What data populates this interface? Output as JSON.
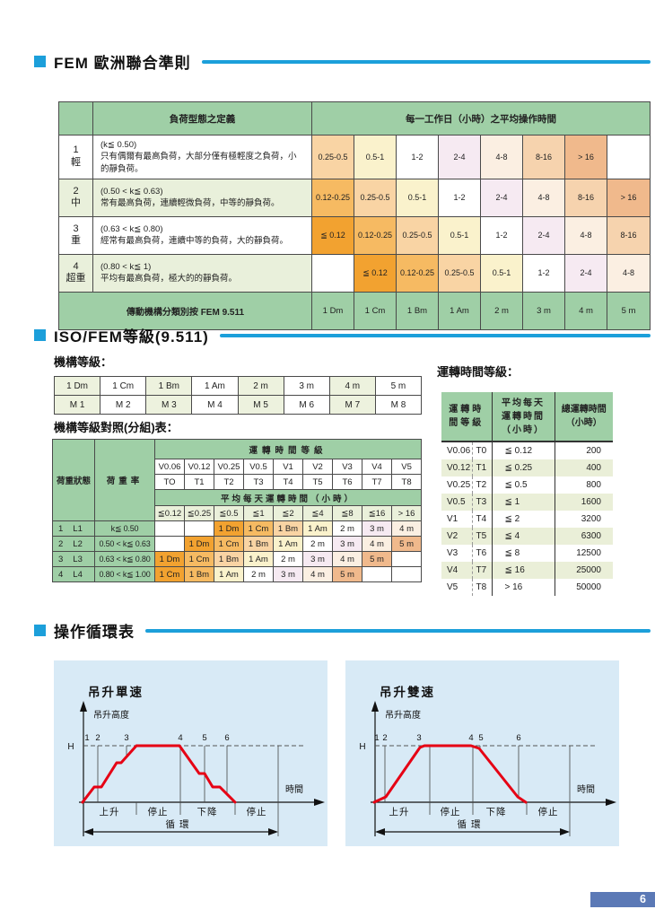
{
  "accent": {
    "blue": "#1C9FDA",
    "red": "#E60014",
    "panel_blue": "#D8EAF6",
    "badge_blue": "#5B79B6",
    "table_green": "#9FCFA6"
  },
  "page_number": "6",
  "fem": {
    "title": "FEM 歐洲聯合準則",
    "table": {
      "col_def": "負荷型態之定義",
      "col_time": "每一工作日（小時）之平均操作時間",
      "rows": [
        {
          "no": "1",
          "cls": "輕",
          "cond": "(k≦ 0.50)",
          "desc": "只有偶爾有最高負荷，大部分僅有極輕度之負荷，小的靜負荷。",
          "shade": false,
          "cells": [
            {
              "t": "0.25-0.5",
              "c": "o3"
            },
            {
              "t": "0.5-1",
              "c": "cr"
            },
            {
              "t": "1-2",
              "c": "wh"
            },
            {
              "t": "2-4",
              "c": "pk"
            },
            {
              "t": "4-8",
              "c": "p1"
            },
            {
              "t": "8-16",
              "c": "p2"
            },
            {
              "t": "> 16",
              "c": "p3"
            },
            {
              "t": "",
              "c": "wh"
            }
          ]
        },
        {
          "no": "2",
          "cls": "中",
          "cond": "(0.50 < k≦ 0.63)",
          "desc": "常有最高負荷，連續輕微負荷，中等的靜負荷。",
          "shade": true,
          "cells": [
            {
              "t": "0.12-0.25",
              "c": "o2"
            },
            {
              "t": "0.25-0.5",
              "c": "o3"
            },
            {
              "t": "0.5-1",
              "c": "cr"
            },
            {
              "t": "1-2",
              "c": "wh"
            },
            {
              "t": "2-4",
              "c": "pk"
            },
            {
              "t": "4-8",
              "c": "p1"
            },
            {
              "t": "8-16",
              "c": "p2"
            },
            {
              "t": "> 16",
              "c": "p3"
            }
          ]
        },
        {
          "no": "3",
          "cls": "重",
          "cond": "(0.63 < k≦ 0.80)",
          "desc": "經常有最高負荷，連續中等的負荷，大的靜負荷。",
          "shade": false,
          "cells": [
            {
              "t": "≦ 0.12",
              "c": "o1"
            },
            {
              "t": "0.12-0.25",
              "c": "o2"
            },
            {
              "t": "0.25-0.5",
              "c": "o3"
            },
            {
              "t": "0.5-1",
              "c": "cr"
            },
            {
              "t": "1-2",
              "c": "wh"
            },
            {
              "t": "2-4",
              "c": "pk"
            },
            {
              "t": "4-8",
              "c": "p1"
            },
            {
              "t": "8-16",
              "c": "p2"
            }
          ]
        },
        {
          "no": "4",
          "cls": "超重",
          "cond": "(0.80 < k≦ 1)",
          "desc": "平均有最高負荷，極大的的靜負荷。",
          "shade": true,
          "cells": [
            {
              "t": "",
              "c": "wh"
            },
            {
              "t": "≦ 0.12",
              "c": "o1"
            },
            {
              "t": "0.12-0.25",
              "c": "o2"
            },
            {
              "t": "0.25-0.5",
              "c": "o3"
            },
            {
              "t": "0.5-1",
              "c": "cr"
            },
            {
              "t": "1-2",
              "c": "wh"
            },
            {
              "t": "2-4",
              "c": "pk"
            },
            {
              "t": "4-8",
              "c": "p1"
            }
          ]
        }
      ],
      "footer_label": "傳動機構分類別按 FEM 9.511",
      "footer_cells": [
        "1 Dm",
        "1 Cm",
        "1 Bm",
        "1 Am",
        "2 m",
        "3 m",
        "4 m",
        "5 m"
      ]
    }
  },
  "iso": {
    "title": "ISO/FEM等級(9.511)",
    "mech_label": "機構等級：",
    "mech_rows": [
      [
        "1 Dm",
        "1 Cm",
        "1 Bm",
        "1 Am",
        "2 m",
        "3 m",
        "4 m",
        "5 m"
      ],
      [
        "M 1",
        "M 2",
        "M 3",
        "M 4",
        "M 5",
        "M 6",
        "M 7",
        "M 8"
      ]
    ],
    "map_label": "機構等級對照(分組)表：",
    "map": {
      "col_state": "荷重狀態",
      "col_rate": "荷重率",
      "band_top": "運轉時間等級",
      "v_row": [
        "V0.06",
        "V0.12",
        "V0.25",
        "V0.5",
        "V1",
        "V2",
        "V3",
        "V4",
        "V5"
      ],
      "t_row": [
        "TO",
        "T1",
        "T2",
        "T3",
        "T4",
        "T5",
        "T6",
        "T7",
        "T8"
      ],
      "band_mid": "平均每天運轉時間（小時）",
      "h_row": [
        "≦0.12",
        "≦0.25",
        "≦0.5",
        "≦1",
        "≦2",
        "≦4",
        "≦8",
        "≦16",
        "> 16"
      ],
      "rows": [
        {
          "no": "1",
          "grade": "L1",
          "rate": "k≦ 0.50",
          "cells": [
            {
              "t": "",
              "c": "wh"
            },
            {
              "t": "",
              "c": "wh"
            },
            {
              "t": "1 Dm",
              "c": "o1"
            },
            {
              "t": "1 Cm",
              "c": "o2"
            },
            {
              "t": "1 Bm",
              "c": "o3"
            },
            {
              "t": "1 Am",
              "c": "cr"
            },
            {
              "t": "2 m",
              "c": "wh"
            },
            {
              "t": "3 m",
              "c": "pk"
            },
            {
              "t": "4 m",
              "c": "p1"
            }
          ]
        },
        {
          "no": "2",
          "grade": "L2",
          "rate": "0.50 < k≦ 0.63",
          "cells": [
            {
              "t": "",
              "c": "wh"
            },
            {
              "t": "1 Dm",
              "c": "o1"
            },
            {
              "t": "1 Cm",
              "c": "o2"
            },
            {
              "t": "1 Bm",
              "c": "o3"
            },
            {
              "t": "1 Am",
              "c": "cr"
            },
            {
              "t": "2 m",
              "c": "wh"
            },
            {
              "t": "3 m",
              "c": "pk"
            },
            {
              "t": "4 m",
              "c": "p1"
            },
            {
              "t": "5 m",
              "c": "p3"
            }
          ]
        },
        {
          "no": "3",
          "grade": "L3",
          "rate": "0.63 < k≦ 0.80",
          "cells": [
            {
              "t": "1 Dm",
              "c": "o1"
            },
            {
              "t": "1 Cm",
              "c": "o2"
            },
            {
              "t": "1 Bm",
              "c": "o3"
            },
            {
              "t": "1 Am",
              "c": "cr"
            },
            {
              "t": "2 m",
              "c": "wh"
            },
            {
              "t": "3 m",
              "c": "pk"
            },
            {
              "t": "4 m",
              "c": "p1"
            },
            {
              "t": "5 m",
              "c": "p3"
            },
            {
              "t": "",
              "c": "wh"
            }
          ]
        },
        {
          "no": "4",
          "grade": "L4",
          "rate": "0.80 < k≦ 1.00",
          "cells": [
            {
              "t": "1 Cm",
              "c": "o1"
            },
            {
              "t": "1 Bm",
              "c": "o2"
            },
            {
              "t": "1 Am",
              "c": "cr"
            },
            {
              "t": "2 m",
              "c": "wh"
            },
            {
              "t": "3 m",
              "c": "pk"
            },
            {
              "t": "4 m",
              "c": "p1"
            },
            {
              "t": "5 m",
              "c": "p3"
            },
            {
              "t": "",
              "c": "wh"
            },
            {
              "t": "",
              "c": "wh"
            }
          ]
        }
      ]
    },
    "time_label": "運轉時間等級：",
    "time": {
      "h_class": "運轉時\n間等級",
      "h_avg": "平均每天\n運轉時間\n（小時）",
      "h_total": "總運轉時間\n（小時）",
      "rows": [
        {
          "v": "V0.06",
          "t": "T0",
          "avg": "≦ 0.12",
          "total": "200"
        },
        {
          "v": "V0.12",
          "t": "T1",
          "avg": "≦ 0.25",
          "total": "400"
        },
        {
          "v": "V0.25",
          "t": "T2",
          "avg": "≦ 0.5",
          "total": "800"
        },
        {
          "v": "V0.5",
          "t": "T3",
          "avg": "≦ 1",
          "total": "1600"
        },
        {
          "v": "V1",
          "t": "T4",
          "avg": "≦ 2",
          "total": "3200"
        },
        {
          "v": "V2",
          "t": "T5",
          "avg": "≦ 4",
          "total": "6300"
        },
        {
          "v": "V3",
          "t": "T6",
          "avg": "≦ 8",
          "total": "12500"
        },
        {
          "v": "V4",
          "t": "T7",
          "avg": "≦ 16",
          "total": "25000"
        },
        {
          "v": "V5",
          "t": "T8",
          "avg": "> 16",
          "total": "50000"
        }
      ]
    }
  },
  "cycle": {
    "title": "操作循環表",
    "diagrams": [
      {
        "title": "吊升單速",
        "y_axis": "吊升高度",
        "h": "H",
        "x_axis": "時間",
        "marks": [
          "1",
          "2",
          "3",
          "4",
          "5",
          "6"
        ],
        "regions": [
          "上升",
          "停止",
          "下降",
          "停止"
        ],
        "cycle": "循 環",
        "curve": "32,158 45,141 53,141 70,114 75,114 92,95 140,95 162,126 168,126 177,141 185,141 202,158"
      },
      {
        "title": "吊升雙速",
        "y_axis": "吊升高度",
        "h": "H",
        "x_axis": "時間",
        "marks": [
          "1",
          "2",
          "3",
          "4",
          "5",
          "6"
        ],
        "regions": [
          "上升",
          "停止",
          "下降",
          "停止"
        ],
        "cycle": "循 環",
        "curve": "32,158 45,152 83,97 88,95 140,95 149,98 192,152 201,158"
      }
    ]
  }
}
